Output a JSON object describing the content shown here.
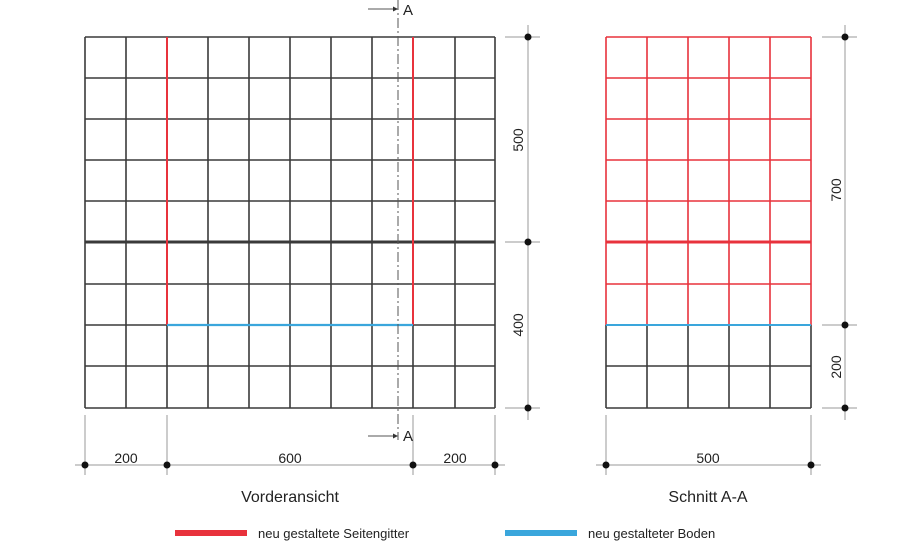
{
  "colors": {
    "frame": "#3a3a3a",
    "side_rail": "#e8323c",
    "floor": "#3aa6dc",
    "dim": "#999999"
  },
  "front_view": {
    "caption": "Vorderansicht",
    "section_marker": "A",
    "widths": [
      "200",
      "600",
      "200"
    ],
    "heights": [
      "500",
      "400"
    ]
  },
  "section_view": {
    "caption": "Schnitt A-A",
    "width": "500",
    "heights": [
      "700",
      "200"
    ]
  },
  "legend": [
    {
      "label": "neu gestaltete Seitengitter",
      "color": "#e8323c"
    },
    {
      "label": "neu gestalteter Boden",
      "color": "#3aa6dc"
    }
  ]
}
